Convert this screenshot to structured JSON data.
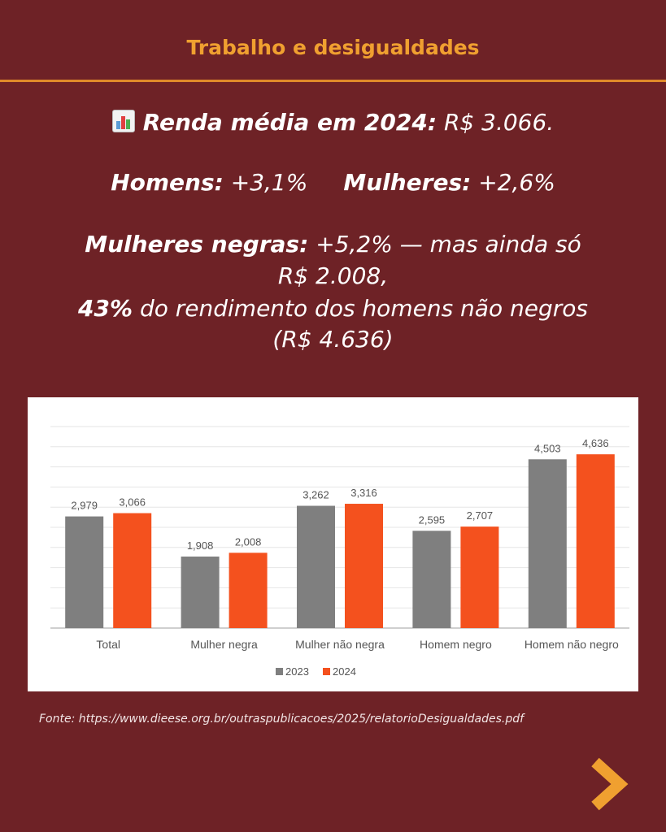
{
  "header": {
    "title": "Trabalho e desigualdades"
  },
  "summary": {
    "icon": "bar-chart-icon",
    "line1_bold": "Renda média em 2024:",
    "line1_rest": " R$ 3.066.",
    "men_bold": "Homens:",
    "men_rest": " +3,1%",
    "women_bold": "Mulheres:",
    "women_rest": " +2,6%",
    "line3_bold": "Mulheres negras:",
    "line3_rest": " +5,2% — mas ainda só",
    "line4": "R$ 2.008,",
    "line5_bold": "43%",
    "line5_rest": " do rendimento dos homens não negros",
    "line6": "(R$ 4.636)"
  },
  "chart_data": {
    "type": "bar",
    "categories": [
      "Total",
      "Mulher negra",
      "Mulher não negra",
      "Homem negro",
      "Homem não negro"
    ],
    "series": [
      {
        "name": "2023",
        "values": [
          2979,
          1908,
          3262,
          2595,
          4503
        ],
        "labels": [
          "2,979",
          "1,908",
          "3,262",
          "2,595",
          "4,503"
        ],
        "color": "#7f7f7f"
      },
      {
        "name": "2024",
        "values": [
          3066,
          2008,
          3316,
          2707,
          4636
        ],
        "labels": [
          "3,066",
          "2,008",
          "3,316",
          "2,707",
          "4,636"
        ],
        "color": "#f4511e"
      }
    ],
    "ylim": [
      0,
      5000
    ],
    "grid": true,
    "legend": "bottom"
  },
  "footer": {
    "source": "Fonte: https://www.dieese.org.br/outraspublicacoes/2025/relatorioDesigualdades.pdf",
    "next_icon": "chevron-right-icon",
    "accent": "#f0a030",
    "background": "#6e2226"
  }
}
